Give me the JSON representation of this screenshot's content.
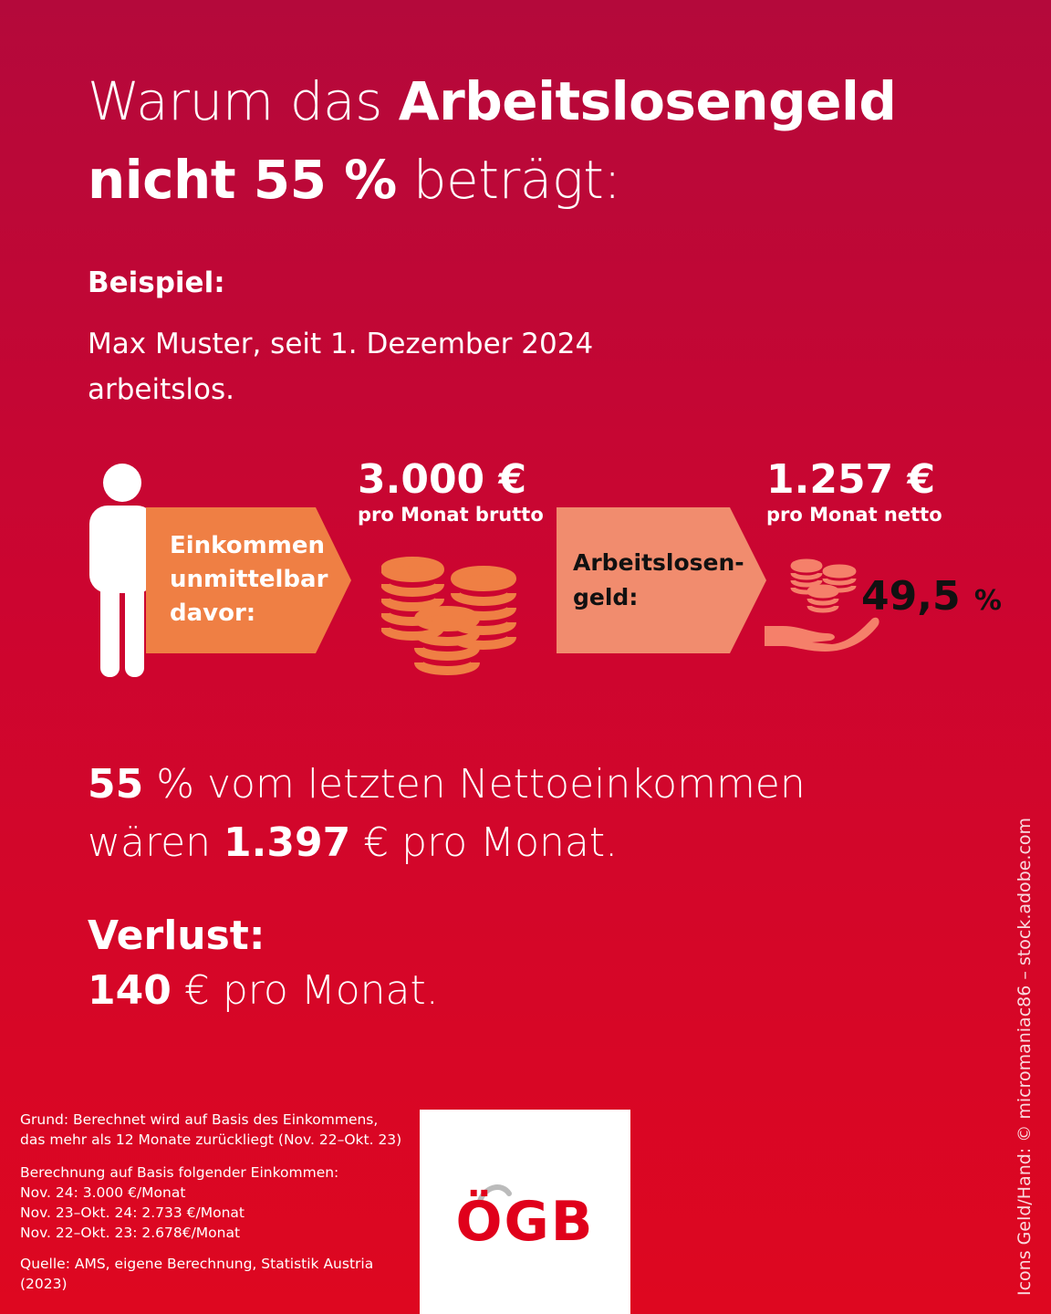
{
  "title": {
    "line1_light": "Warum das ",
    "line1_bold": "Arbeitslosengeld",
    "line2_bold": "nicht 55 %",
    "line2_light": " beträgt:"
  },
  "example": {
    "label": "Beispiel:",
    "text": "Max Muster, seit 1. Dezember 2024 arbeitslos."
  },
  "income": {
    "arrow_line1": "Einkommen",
    "arrow_line2": "unmittelbar",
    "arrow_line3": "davor:",
    "amount": "3.000 €",
    "sublabel": "pro Monat brutto"
  },
  "benefit": {
    "arrow_line1": "Arbeitslosen-",
    "arrow_line2": "geld:",
    "amount": "1.257 €",
    "sublabel": "pro Monat netto",
    "percent_value": "49,5",
    "percent_sign": "%"
  },
  "calculation": {
    "line1_bold": "55",
    "line1_rest": " % vom letzten Nettoeinkommen",
    "line2_start": "wären ",
    "line2_bold": "1.397",
    "line2_rest": " € pro Monat."
  },
  "loss": {
    "label": "Verlust:",
    "value_bold": "140",
    "value_rest": " € pro Monat."
  },
  "footnotes": {
    "reason_line1": "Grund: Berechnet wird auf Basis des Einkommens,",
    "reason_line2": "das mehr als 12 Monate zurückliegt (Nov. 22–Okt. 23)",
    "basis_title": "Berechnung auf Basis folgender Einkommen:",
    "basis_1": "Nov. 24: 3.000 €/Monat",
    "basis_2": "Nov. 23–Okt. 24: 2.733 €/Monat",
    "basis_3": "Nov. 22–Okt. 23: 2.678€/Monat",
    "source_line1": "Quelle: AMS, eigene Berechnung, Statistik Austria",
    "source_line2": "(2023)"
  },
  "logo": {
    "text": "ÖGB"
  },
  "credit": "Icons Geld/Hand: © micromaniac86 – stock.adobe.com",
  "colors": {
    "background_top": "#b4093b",
    "background_bottom": "#de0720",
    "arrow_income": "#ef7f44",
    "arrow_benefit": "#f18c6e",
    "coin_income": "#ef7f44",
    "coin_benefit": "#f5806a",
    "logo_red": "#e0001b"
  },
  "icons": [
    "person-icon",
    "coin-stacks-icon",
    "hand-with-coins-icon"
  ]
}
